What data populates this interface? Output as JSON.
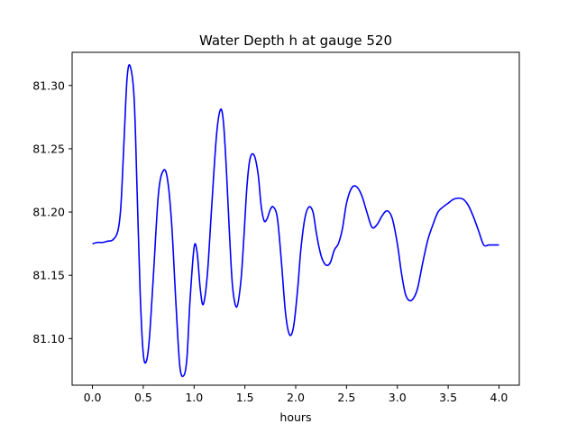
{
  "chart_data": {
    "type": "line",
    "title": "Water Depth h at gauge 520",
    "xlabel": "hours",
    "ylabel": "",
    "xlim": [
      -0.2,
      4.2
    ],
    "ylim": [
      81.0632,
      81.3262
    ],
    "grid": false,
    "legend": "none",
    "xticks": [
      0.0,
      0.5,
      1.0,
      1.5,
      2.0,
      2.5,
      3.0,
      3.5,
      4.0
    ],
    "xtick_labels": [
      "0.0",
      "0.5",
      "1.0",
      "1.5",
      "2.0",
      "2.5",
      "3.0",
      "3.5",
      "4.0"
    ],
    "yticks": [
      81.1,
      81.15,
      81.2,
      81.25,
      81.3
    ],
    "ytick_labels": [
      "81.10",
      "81.15",
      "81.20",
      "81.25",
      "81.30"
    ],
    "series": [
      {
        "color": "#0000ff",
        "x": [
          0.0,
          0.05,
          0.1,
          0.15,
          0.2,
          0.25,
          0.28,
          0.31,
          0.34,
          0.37,
          0.41,
          0.44,
          0.47,
          0.5,
          0.53,
          0.56,
          0.6,
          0.65,
          0.7,
          0.74,
          0.78,
          0.82,
          0.86,
          0.9,
          0.93,
          0.96,
          1.0,
          1.03,
          1.06,
          1.09,
          1.13,
          1.17,
          1.22,
          1.26,
          1.29,
          1.32,
          1.35,
          1.38,
          1.42,
          1.46,
          1.49,
          1.52,
          1.55,
          1.59,
          1.63,
          1.66,
          1.69,
          1.72,
          1.75,
          1.78,
          1.82,
          1.86,
          1.9,
          1.94,
          1.98,
          2.02,
          2.05,
          2.09,
          2.13,
          2.17,
          2.2,
          2.23,
          2.26,
          2.3,
          2.34,
          2.38,
          2.42,
          2.46,
          2.5,
          2.55,
          2.6,
          2.65,
          2.7,
          2.75,
          2.8,
          2.85,
          2.9,
          2.95,
          3.0,
          3.04,
          3.08,
          3.12,
          3.16,
          3.2,
          3.25,
          3.3,
          3.35,
          3.4,
          3.45,
          3.5,
          3.55,
          3.6,
          3.65,
          3.7,
          3.75,
          3.8,
          3.85,
          3.9,
          3.95,
          4.0
        ],
        "y": [
          81.175,
          81.176,
          81.176,
          81.177,
          81.178,
          81.185,
          81.205,
          81.255,
          81.305,
          81.3155,
          81.29,
          81.215,
          81.135,
          81.088,
          81.082,
          81.1,
          81.15,
          81.215,
          81.233,
          81.225,
          81.19,
          81.13,
          81.078,
          81.071,
          81.085,
          81.13,
          81.172,
          81.168,
          81.14,
          81.127,
          81.15,
          81.2,
          81.26,
          81.281,
          81.27,
          81.23,
          81.18,
          81.14,
          81.125,
          81.145,
          81.18,
          81.22,
          81.242,
          81.245,
          81.23,
          81.205,
          81.193,
          81.195,
          81.202,
          81.204,
          81.195,
          81.16,
          81.12,
          81.103,
          81.11,
          81.14,
          81.17,
          81.195,
          81.204,
          81.2,
          81.185,
          81.172,
          81.163,
          81.158,
          81.16,
          81.17,
          81.175,
          81.187,
          81.207,
          81.219,
          81.22,
          81.213,
          81.2,
          81.188,
          81.19,
          81.197,
          81.201,
          81.195,
          81.175,
          81.152,
          81.135,
          81.13,
          81.132,
          81.14,
          81.16,
          81.178,
          81.19,
          81.2,
          81.204,
          81.207,
          81.21,
          81.211,
          81.21,
          81.205,
          81.196,
          81.185,
          81.174,
          81.174,
          81.174,
          81.174
        ]
      }
    ]
  }
}
